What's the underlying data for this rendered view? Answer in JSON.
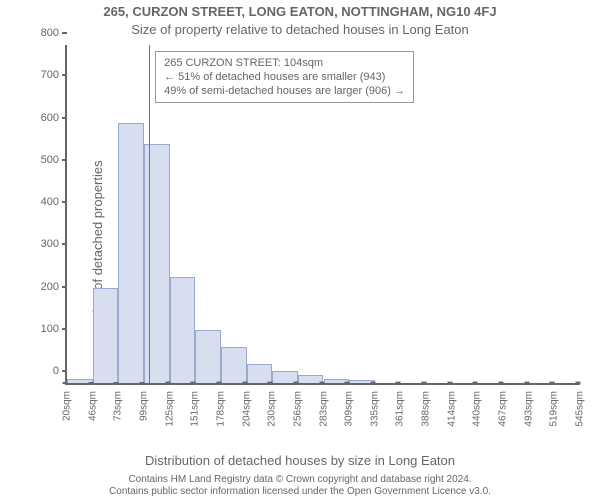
{
  "type": "histogram",
  "title": "265, CURZON STREET, LONG EATON, NOTTINGHAM, NG10 4FJ",
  "subtitle": "Size of property relative to detached houses in Long Eaton",
  "x_axis_label": "Distribution of detached houses by size in Long Eaton",
  "y_axis_label": "Number of detached properties",
  "footnote_line1": "Contains HM Land Registry data © Crown copyright and database right 2024.",
  "footnote_line2": "Contains public sector information licensed under the Open Government Licence v3.0.",
  "colors": {
    "text": "#666666",
    "axis": "#666666",
    "bar_fill": "#d6deef",
    "bar_stroke": "#9aa9cc",
    "refline": "#d94a46",
    "annotation_border": "#999999",
    "background": "#ffffff"
  },
  "axis": {
    "ylim": [
      0,
      800
    ],
    "yticks": [
      0,
      100,
      200,
      300,
      400,
      500,
      600,
      700,
      800
    ],
    "x_tick_labels": [
      "20sqm",
      "46sqm",
      "73sqm",
      "99sqm",
      "125sqm",
      "151sqm",
      "178sqm",
      "204sqm",
      "230sqm",
      "256sqm",
      "283sqm",
      "309sqm",
      "335sqm",
      "361sqm",
      "388sqm",
      "414sqm",
      "440sqm",
      "467sqm",
      "493sqm",
      "519sqm",
      "545sqm"
    ]
  },
  "bars": {
    "values": [
      10,
      225,
      615,
      565,
      250,
      125,
      85,
      45,
      28,
      20,
      10,
      6,
      0,
      0,
      0,
      0,
      0,
      0,
      0,
      0
    ],
    "count": 20
  },
  "reference": {
    "sqm": 104,
    "range_min": 20,
    "range_max": 545
  },
  "annotation": {
    "line1": "265 CURZON STREET: 104sqm",
    "line2": "← 51% of detached houses are smaller (943)",
    "line3": "49% of semi-detached houses are larger (906) →"
  },
  "fontsize": {
    "title": 13,
    "subtitle": 13,
    "labels": 13,
    "ticks": 11,
    "annotation": 11,
    "footnote": 10
  }
}
